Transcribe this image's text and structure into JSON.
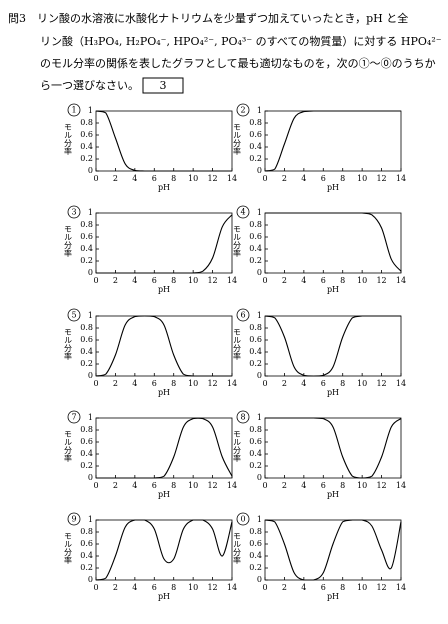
{
  "question": {
    "lines": [
      "問3　リン酸の水溶液に水酸化ナトリウムを少量ずつ加えていったとき，pH と全",
      "リン酸（H₃PO₄, H₂PO₄⁻, HPO₄²⁻, PO₄³⁻ のすべての物質量）に対する HPO₄²⁻",
      "のモル分率の関係を表したグラフとして最も適切なものを，次の①～⓪のうちか",
      "ら一つ選びなさい。"
    ],
    "answer_box": "3"
  },
  "chart_data": [
    {
      "type": "line",
      "label": "1",
      "xlabel": "pH",
      "ylabel": "モル分率",
      "color": "#000",
      "xlim": [
        0,
        14
      ],
      "ylim": [
        0,
        1
      ],
      "xticks": [
        0,
        2,
        4,
        6,
        8,
        10,
        12,
        14
      ],
      "yticks": [
        0,
        0.2,
        0.4,
        0.6,
        0.8,
        1
      ],
      "x": [
        0,
        1,
        2,
        3,
        4,
        5,
        6,
        7,
        8,
        9,
        10,
        11,
        12,
        13,
        14
      ],
      "values": [
        1,
        0.97,
        0.55,
        0.12,
        0.01,
        0,
        0,
        0,
        0,
        0,
        0,
        0,
        0,
        0,
        0
      ]
    },
    {
      "type": "line",
      "label": "2",
      "xlabel": "pH",
      "ylabel": "モル分率",
      "color": "#000",
      "xlim": [
        0,
        14
      ],
      "ylim": [
        0,
        1
      ],
      "xticks": [
        0,
        2,
        4,
        6,
        8,
        10,
        12,
        14
      ],
      "yticks": [
        0,
        0.2,
        0.4,
        0.6,
        0.8,
        1
      ],
      "x": [
        0,
        1,
        2,
        3,
        4,
        5,
        6,
        7,
        8,
        9,
        10,
        11,
        12,
        13,
        14
      ],
      "values": [
        0,
        0.03,
        0.45,
        0.88,
        0.99,
        1,
        1,
        1,
        1,
        1,
        1,
        1,
        1,
        1,
        1
      ]
    },
    {
      "type": "line",
      "label": "3",
      "xlabel": "pH",
      "ylabel": "モル分率",
      "color": "#000",
      "xlim": [
        0,
        14
      ],
      "ylim": [
        0,
        1
      ],
      "xticks": [
        0,
        2,
        4,
        6,
        8,
        10,
        12,
        14
      ],
      "yticks": [
        0,
        0.2,
        0.4,
        0.6,
        0.8,
        1
      ],
      "x": [
        0,
        1,
        2,
        3,
        4,
        5,
        6,
        7,
        8,
        9,
        10,
        11,
        12,
        13,
        14
      ],
      "values": [
        0,
        0,
        0,
        0,
        0,
        0,
        0,
        0,
        0,
        0,
        0,
        0.03,
        0.25,
        0.77,
        0.97
      ]
    },
    {
      "type": "line",
      "label": "4",
      "xlabel": "pH",
      "ylabel": "モル分率",
      "color": "#000",
      "xlim": [
        0,
        14
      ],
      "ylim": [
        0,
        1
      ],
      "xticks": [
        0,
        2,
        4,
        6,
        8,
        10,
        12,
        14
      ],
      "yticks": [
        0,
        0.2,
        0.4,
        0.6,
        0.8,
        1
      ],
      "x": [
        0,
        1,
        2,
        3,
        4,
        5,
        6,
        7,
        8,
        9,
        10,
        11,
        12,
        13,
        14
      ],
      "values": [
        1,
        1,
        1,
        1,
        1,
        1,
        1,
        1,
        1,
        1,
        1,
        0.97,
        0.75,
        0.23,
        0.03
      ]
    },
    {
      "type": "line",
      "label": "5",
      "xlabel": "pH",
      "ylabel": "モル分率",
      "color": "#000",
      "xlim": [
        0,
        14
      ],
      "ylim": [
        0,
        1
      ],
      "xticks": [
        0,
        2,
        4,
        6,
        8,
        10,
        12,
        14
      ],
      "yticks": [
        0,
        0.2,
        0.4,
        0.6,
        0.8,
        1
      ],
      "x": [
        0,
        1,
        2,
        3,
        4,
        5,
        6,
        7,
        8,
        9,
        10,
        11,
        12,
        13,
        14
      ],
      "values": [
        0,
        0.03,
        0.35,
        0.85,
        0.99,
        1,
        0.99,
        0.85,
        0.35,
        0.03,
        0,
        0,
        0,
        0,
        0
      ]
    },
    {
      "type": "line",
      "label": "6",
      "xlabel": "pH",
      "ylabel": "モル分率",
      "color": "#000",
      "xlim": [
        0,
        14
      ],
      "ylim": [
        0,
        1
      ],
      "xticks": [
        0,
        2,
        4,
        6,
        8,
        10,
        12,
        14
      ],
      "yticks": [
        0,
        0.2,
        0.4,
        0.6,
        0.8,
        1
      ],
      "x": [
        0,
        1,
        2,
        3,
        4,
        5,
        6,
        7,
        8,
        9,
        10,
        11,
        12,
        13,
        14
      ],
      "values": [
        1,
        0.97,
        0.65,
        0.15,
        0.01,
        0,
        0.01,
        0.15,
        0.65,
        0.97,
        1,
        1,
        1,
        1,
        1
      ]
    },
    {
      "type": "line",
      "label": "7",
      "xlabel": "pH",
      "ylabel": "モル分率",
      "color": "#000",
      "xlim": [
        0,
        14
      ],
      "ylim": [
        0,
        1
      ],
      "xticks": [
        0,
        2,
        4,
        6,
        8,
        10,
        12,
        14
      ],
      "yticks": [
        0,
        0.2,
        0.4,
        0.6,
        0.8,
        1
      ],
      "x": [
        0,
        1,
        2,
        3,
        4,
        5,
        6,
        7,
        8,
        9,
        10,
        11,
        12,
        13,
        14
      ],
      "values": [
        0,
        0,
        0,
        0,
        0,
        0,
        0,
        0.03,
        0.35,
        0.85,
        0.99,
        0.99,
        0.85,
        0.35,
        0.03
      ]
    },
    {
      "type": "line",
      "label": "8",
      "xlabel": "pH",
      "ylabel": "モル分率",
      "color": "#000",
      "xlim": [
        0,
        14
      ],
      "ylim": [
        0,
        1
      ],
      "xticks": [
        0,
        2,
        4,
        6,
        8,
        10,
        12,
        14
      ],
      "yticks": [
        0,
        0.2,
        0.4,
        0.6,
        0.8,
        1
      ],
      "x": [
        0,
        1,
        2,
        3,
        4,
        5,
        6,
        7,
        8,
        9,
        10,
        11,
        12,
        13,
        14
      ],
      "values": [
        1,
        1,
        1,
        1,
        1,
        1,
        0.99,
        0.85,
        0.35,
        0.03,
        0,
        0.03,
        0.35,
        0.85,
        0.99
      ]
    },
    {
      "type": "line",
      "label": "9",
      "xlabel": "pH",
      "ylabel": "モル分率",
      "color": "#000",
      "xlim": [
        0,
        14
      ],
      "ylim": [
        0,
        1
      ],
      "xticks": [
        0,
        2,
        4,
        6,
        8,
        10,
        12,
        14
      ],
      "yticks": [
        0,
        0.2,
        0.4,
        0.6,
        0.8,
        1
      ],
      "x": [
        0,
        1,
        2,
        3,
        4,
        5,
        6,
        7,
        8,
        9,
        10,
        11,
        12,
        13,
        14
      ],
      "values": [
        0,
        0.03,
        0.4,
        0.88,
        1,
        1,
        0.85,
        0.35,
        0.35,
        0.85,
        1,
        1,
        0.85,
        0.4,
        0.97
      ]
    },
    {
      "type": "line",
      "label": "0",
      "xlabel": "pH",
      "ylabel": "モル分率",
      "color": "#000",
      "xlim": [
        0,
        14
      ],
      "ylim": [
        0,
        1
      ],
      "xticks": [
        0,
        2,
        4,
        6,
        8,
        10,
        12,
        14
      ],
      "yticks": [
        0,
        0.2,
        0.4,
        0.6,
        0.8,
        1
      ],
      "x": [
        0,
        1,
        2,
        3,
        4,
        5,
        6,
        7,
        8,
        9,
        10,
        11,
        12,
        13,
        14
      ],
      "values": [
        1,
        0.97,
        0.6,
        0.12,
        0,
        0,
        0.12,
        0.6,
        0.97,
        1,
        1,
        0.9,
        0.5,
        0.2,
        0.97
      ]
    }
  ]
}
